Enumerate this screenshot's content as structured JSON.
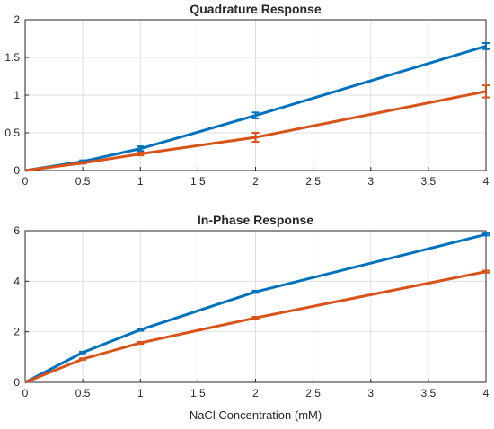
{
  "chart_data": [
    {
      "type": "line",
      "title": "Quadrature Response",
      "xlabel": "",
      "ylabel": "",
      "xlim": [
        0,
        4
      ],
      "ylim": [
        0,
        2
      ],
      "xticks": [
        0,
        0.5,
        1,
        1.5,
        2,
        2.5,
        3,
        3.5,
        4
      ],
      "xtick_labels": [
        "0",
        "0.5",
        "1",
        "1.5",
        "2",
        "2.5",
        "3",
        "3.5",
        "4"
      ],
      "yticks": [
        0,
        0.5,
        1,
        1.5,
        2
      ],
      "ytick_labels": [
        "0",
        "0.5",
        "1",
        "1.5",
        "2"
      ],
      "grid": true,
      "x": [
        0,
        0.5,
        1,
        2,
        4
      ],
      "series": [
        {
          "color": "#0072BD",
          "values": [
            0,
            0.12,
            0.29,
            0.73,
            1.65
          ],
          "errors": [
            0,
            0.015,
            0.03,
            0.04,
            0.04
          ]
        },
        {
          "color": "#D95319",
          "values": [
            0,
            0.1,
            0.22,
            0.44,
            1.05
          ],
          "errors": [
            0,
            0.01,
            0.02,
            0.06,
            0.08
          ]
        }
      ]
    },
    {
      "type": "line",
      "title": "In-Phase Response",
      "xlabel": "NaCl Concentration (mM)",
      "ylabel": "",
      "xlim": [
        0,
        4
      ],
      "ylim": [
        0,
        6
      ],
      "xticks": [
        0,
        0.5,
        1,
        1.5,
        2,
        2.5,
        3,
        3.5,
        4
      ],
      "xtick_labels": [
        "0",
        "0.5",
        "1",
        "1.5",
        "2",
        "2.5",
        "3",
        "3.5",
        "4"
      ],
      "yticks": [
        0,
        2,
        4,
        6
      ],
      "ytick_labels": [
        "0",
        "2",
        "4",
        "6"
      ],
      "grid": true,
      "x": [
        0,
        0.5,
        1,
        2,
        4
      ],
      "series": [
        {
          "color": "#0072BD",
          "values": [
            0,
            1.18,
            2.08,
            3.58,
            5.85
          ],
          "errors": [
            0,
            0.03,
            0.04,
            0.04,
            0.04
          ]
        },
        {
          "color": "#D95319",
          "values": [
            0,
            0.92,
            1.56,
            2.55,
            4.38
          ],
          "errors": [
            0,
            0.03,
            0.04,
            0.04,
            0.04
          ]
        }
      ]
    }
  ]
}
